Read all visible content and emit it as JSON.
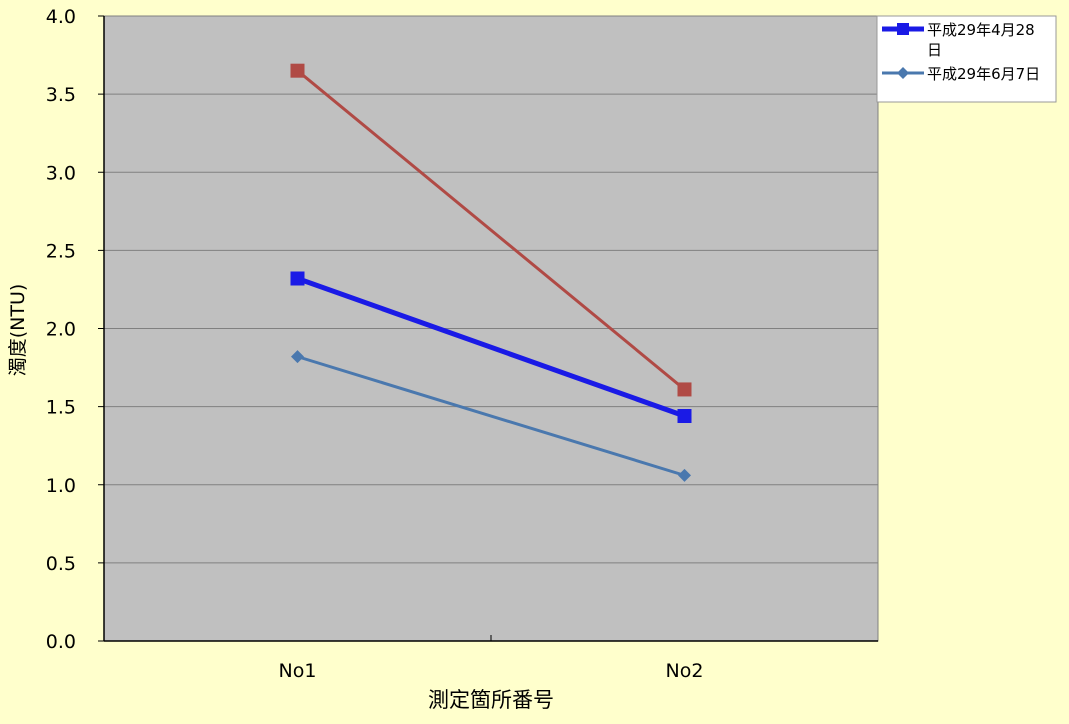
{
  "chart_data": {
    "type": "line",
    "categories": [
      "No1",
      "No2"
    ],
    "ylim": [
      0,
      4
    ],
    "yticks": [
      "0.0",
      "0.5",
      "1.0",
      "1.5",
      "2.0",
      "2.5",
      "3.0",
      "3.5",
      "4.0"
    ],
    "xlabel": "測定箇所番号",
    "ylabel": "濁度(NTU)",
    "grid": true,
    "legend_position": "top-right",
    "series": [
      {
        "name": "",
        "values": [
          3.65,
          1.61
        ],
        "color": "#B04A45",
        "marker": "square",
        "line_width": 3
      },
      {
        "name": "平成29年4月28日",
        "values": [
          2.32,
          1.44
        ],
        "color": "#1A1AE6",
        "marker": "square",
        "line_width": 5
      },
      {
        "name": "平成29年6月7日",
        "values": [
          1.82,
          1.06
        ],
        "color": "#4A78AE",
        "marker": "diamond",
        "line_width": 3
      }
    ],
    "colors": {
      "page_background": "#FFFFCC",
      "plot_background": "#C0C0C0",
      "gridline": "#808080",
      "axis": "#000000"
    }
  }
}
